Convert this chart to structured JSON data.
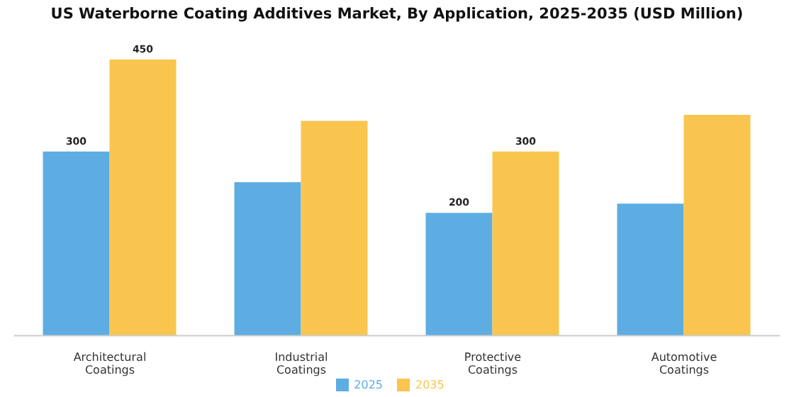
{
  "chart_data": {
    "type": "bar",
    "title": "US Waterborne Coating Additives Market, By Application, 2025-2035 (USD Million)",
    "categories": [
      "Architectural Coatings",
      "Industrial Coatings",
      "Protective Coatings",
      "Automotive Coatings"
    ],
    "series": [
      {
        "name": "2025",
        "color": "#5dade2",
        "values": [
          300,
          250,
          200,
          215
        ],
        "value_labels": [
          "300",
          null,
          "200",
          null
        ]
      },
      {
        "name": "2035",
        "color": "#f9c54e",
        "values": [
          450,
          350,
          300,
          360
        ],
        "value_labels": [
          "450",
          null,
          "300",
          null
        ]
      }
    ],
    "grid": false,
    "legend": "bottom"
  }
}
